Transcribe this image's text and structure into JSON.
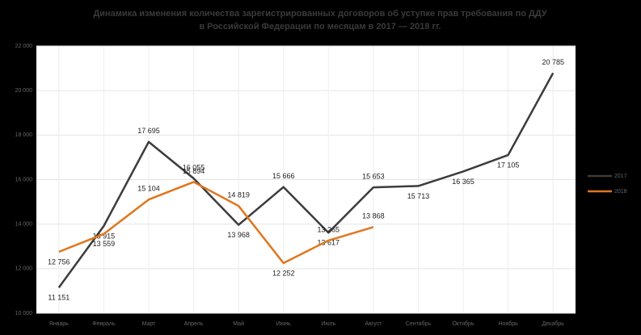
{
  "chart_data": {
    "type": "line",
    "title": "Динамика изменения количества зарегистрированных договоров об уступке прав требования по ДДУ",
    "subtitle": "в Российской Федерации по месяцам в 2017 — 2018 гг.",
    "categories": [
      "Январь",
      "Февраль",
      "Март",
      "Апрель",
      "Май",
      "Июнь",
      "Июль",
      "Август",
      "Сентябрь",
      "Октябрь",
      "Ноябрь",
      "Декабрь"
    ],
    "series": [
      {
        "name": "2017",
        "color": "#3c3c3c",
        "values": [
          11151,
          13915,
          17695,
          16055,
          13968,
          15666,
          13617,
          15653,
          15713,
          16365,
          17105,
          20785
        ],
        "value_labels": [
          "11 151",
          "13 915",
          "17 695",
          "16 055",
          "13 968",
          "15 666",
          "13 617",
          "15 653",
          "15 713",
          "16 365",
          "17 105",
          "20 785"
        ]
      },
      {
        "name": "2018",
        "color": "#e0761c",
        "values": [
          12756,
          13559,
          15104,
          15894,
          14819,
          12252,
          13265,
          13868,
          null,
          null,
          null,
          null
        ],
        "value_labels": [
          "12 756",
          "13 559",
          "15 104",
          "15 894",
          "14 819",
          "12 252",
          "13 265",
          "13 868",
          null,
          null,
          null,
          null
        ]
      }
    ],
    "ylim": [
      10000,
      22000
    ],
    "yticks": [
      {
        "value": 10000,
        "label": "10 000"
      },
      {
        "value": 12000,
        "label": "12 000"
      },
      {
        "value": 14000,
        "label": "14 000"
      },
      {
        "value": 16000,
        "label": "16 000"
      },
      {
        "value": 18000,
        "label": "18 000"
      },
      {
        "value": 20000,
        "label": "20 000"
      },
      {
        "value": 22000,
        "label": "22 000"
      }
    ],
    "grid": true,
    "legend": "right"
  }
}
